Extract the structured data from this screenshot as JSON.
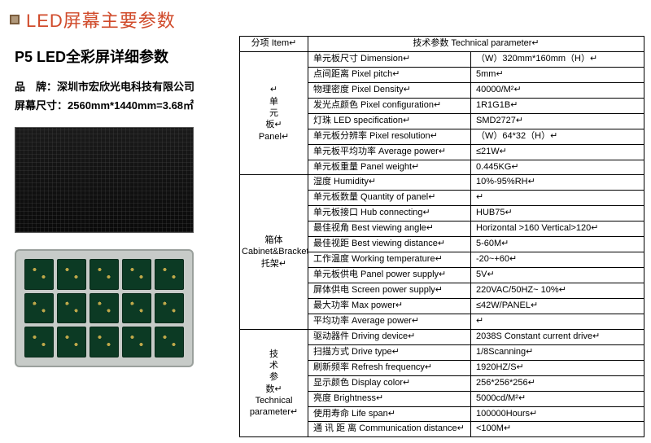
{
  "header": {
    "title": "LED屏幕主要参数"
  },
  "left": {
    "subtitle": "P5 LED全彩屏详细参数",
    "brand_line": "品　牌：深圳市宏欣光电科技有限公司",
    "size_line": "屏幕尺寸：2560mm*1440mm=3.68㎡"
  },
  "table": {
    "head_item": "分项  Item↵",
    "head_tech": "技术参数  Technical parameter↵",
    "sections": [
      {
        "label": "↵\n单\n元\n板↵\nPanel↵",
        "rows": [
          {
            "param": "单元板尺寸  Dimension↵",
            "value": "（W）320mm*160mm（H）↵"
          },
          {
            "param": "点间距离      Pixel pitch↵",
            "value": "5mm↵"
          },
          {
            "param": "物理密度   Pixel Density↵",
            "value": "40000/M²↵"
          },
          {
            "param": "发光点颜色  Pixel configuration↵",
            "value": "1R1G1B↵"
          },
          {
            "param": "灯珠     LED specification↵",
            "value": "SMD2727↵"
          },
          {
            "param": "单元板分辨率   Pixel resolution↵",
            "value": "（W）64*32（H）↵"
          },
          {
            "param": "单元板平均功率   Average power↵",
            "value": "≤21W↵"
          },
          {
            "param": "单元板重量    Panel weight↵",
            "value": "0.445KG↵"
          }
        ]
      },
      {
        "label": "箱体\nCabinet&Bracket↵\n托架↵",
        "rows": [
          {
            "param": "湿度        Humidity↵",
            "value": " 10%-95%RH↵"
          },
          {
            "param": "单元板数量  Quantity of panel↵",
            "value": "↵"
          },
          {
            "param": "单元板接口 Hub connecting↵",
            "value": " HUB75↵"
          },
          {
            "param": "最佳视角  Best viewing angle↵",
            "value": "Horizontal >160    Vertical>120↵"
          },
          {
            "param": "最佳视距  Best viewing distance↵",
            "value": "5-60M↵"
          },
          {
            "param": "工作温度  Working temperature↵",
            "value": "-20~+60↵"
          },
          {
            "param": "单元板供电   Panel power supply↵",
            "value": "5V↵"
          },
          {
            "param": "屏体供电      Screen power supply↵",
            "value": "220VAC/50HZ~ 10%↵"
          },
          {
            "param": "最大功率       Max power↵",
            "value": " ≤42W/PANEL↵"
          },
          {
            "param": "平均功率     Average power↵",
            "value": "↵"
          }
        ]
      },
      {
        "label": "技\n术\n参\n数↵\nTechnical\nparameter↵",
        "rows": [
          {
            "param": "驱动器件   Driving device↵",
            "value": "2038S Constant current drive↵"
          },
          {
            "param": "扫描方式   Drive type↵",
            "value": "1/8Scanning↵"
          },
          {
            "param": "刷新频率   Refresh frequency↵",
            "value": "1920HZ/S↵"
          },
          {
            "param": "显示颜色  Display color↵",
            "value": "256*256*256↵"
          },
          {
            "param": "亮度         Brightness↵",
            "value": "5000cd/M²↵"
          },
          {
            "param": "使用寿命  Life span↵",
            "value": "100000Hours↵"
          },
          {
            "param": "通 讯 距 离  Communication distance↵",
            "value": "<100M↵"
          }
        ]
      }
    ]
  }
}
